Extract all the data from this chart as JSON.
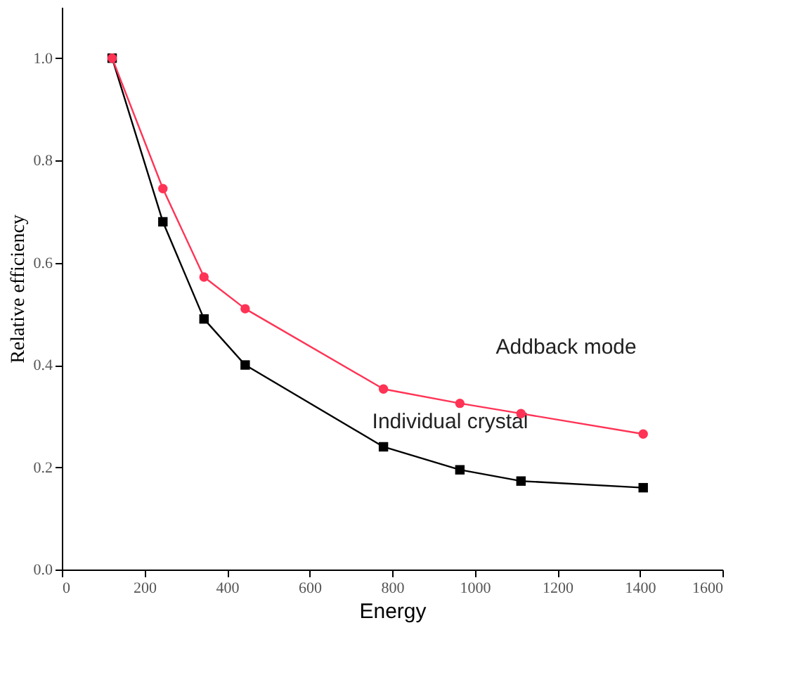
{
  "chart_data": {
    "type": "line",
    "xlabel": "Energy",
    "ylabel": "Relative efficiency",
    "x": [
      121.8,
      244.7,
      344.3,
      444,
      778.9,
      964,
      1112,
      1408
    ],
    "series": [
      {
        "name": "Addback mode",
        "color": "#ff3355",
        "marker": "circle",
        "values": [
          1.0,
          0.745,
          0.572,
          0.51,
          0.353,
          0.325,
          0.305,
          0.265
        ]
      },
      {
        "name": "Individual crystal",
        "color": "#000000",
        "marker": "square",
        "values": [
          1.0,
          0.68,
          0.49,
          0.4,
          0.24,
          0.195,
          0.173,
          0.16
        ]
      }
    ],
    "xlim": [
      0,
      1600
    ],
    "xticks": [
      0,
      200,
      400,
      600,
      800,
      1000,
      1200,
      1400,
      1600
    ],
    "ylim": [
      0,
      1.1
    ],
    "yticks": [
      {
        "value": 0,
        "label": "0.0"
      },
      0.2,
      0.4,
      0.6,
      0.8,
      {
        "value": 1,
        "label": "1.0"
      }
    ],
    "grid": false,
    "legend": false,
    "line_style": "solid"
  }
}
